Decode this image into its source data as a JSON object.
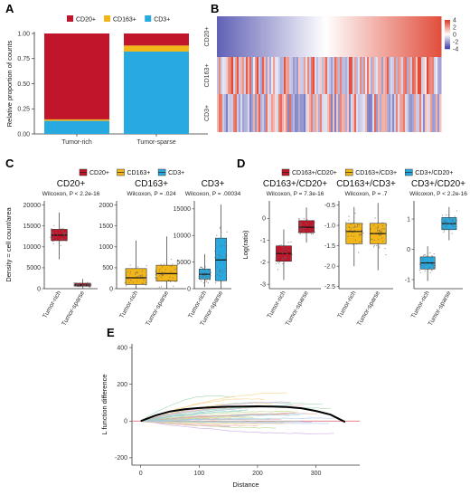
{
  "colors": {
    "red": "#c0152a",
    "yellow": "#f2b619",
    "blue": "#28a9e0",
    "trend": "#000000",
    "zero": "#e0707a"
  },
  "panels": {
    "A": "A",
    "B": "B",
    "C": "C",
    "D": "D",
    "E": "E"
  },
  "chart_data": [
    {
      "id": "A",
      "type": "bar",
      "stacked": true,
      "categories": [
        "Tumor-rich",
        "Tumor-sparse"
      ],
      "series": [
        {
          "name": "CD3+",
          "values": [
            0.13,
            0.82
          ],
          "color": "#28a9e0"
        },
        {
          "name": "CD163+",
          "values": [
            0.015,
            0.06
          ],
          "color": "#f2b619"
        },
        {
          "name": "CD20+",
          "values": [
            0.855,
            0.12
          ],
          "color": "#c0152a"
        }
      ],
      "legend_order": [
        "CD20+",
        "CD163+",
        "CD3+"
      ],
      "ylabel": "Relative proportion of counts",
      "ylim": [
        0,
        1
      ],
      "yticks": [
        "0.00",
        "0.25",
        "0.50",
        "0.75",
        "1.00"
      ],
      "legend": "top"
    },
    {
      "id": "B",
      "type": "heatmap",
      "rows": [
        "CD20+",
        "CD163+",
        "CD3+"
      ],
      "colorbar": {
        "ticks": [
          "4",
          "2",
          "0",
          "-2",
          "-4"
        ],
        "range": [
          -4,
          4
        ]
      }
    },
    {
      "id": "C",
      "type": "box",
      "legend": [
        "CD20+",
        "CD163+",
        "CD3+"
      ],
      "ylabel": "Density = cell count/area",
      "categories": [
        "Tumor-rich",
        "Tumor-sparse"
      ],
      "facets": [
        {
          "title": "CD20+",
          "test": "Wilcoxon, P < 2.2e-16",
          "ylim": [
            0,
            21000
          ],
          "yticks": [
            0,
            5000,
            10000,
            15000,
            20000
          ],
          "ytick_labels": [
            "0",
            "5000",
            "10000",
            "15000",
            "20000"
          ],
          "boxes": [
            {
              "q1": 11500,
              "median": 12800,
              "q3": 14200,
              "wlo": 7000,
              "whi": 18200,
              "color": "#c0152a"
            },
            {
              "q1": 600,
              "median": 900,
              "q3": 1300,
              "wlo": 100,
              "whi": 2300,
              "color": "#c0152a"
            }
          ]
        },
        {
          "title": "CD163+",
          "test": "Wilcoxon, P = .024",
          "ylim": [
            0,
            2100
          ],
          "yticks": [
            0,
            500,
            1000,
            1500,
            2000
          ],
          "ytick_labels": [
            "0",
            "500",
            "1000",
            "1500",
            "2000"
          ],
          "boxes": [
            {
              "q1": 100,
              "median": 260,
              "q3": 480,
              "wlo": 0,
              "whi": 1150,
              "color": "#f2b619"
            },
            {
              "q1": 180,
              "median": 360,
              "q3": 560,
              "wlo": 0,
              "whi": 1250,
              "color": "#f2b619"
            }
          ]
        },
        {
          "title": "CD3+",
          "test": "Wilcoxon, P = .00034",
          "ylim": [
            0,
            16500
          ],
          "yticks": [
            0,
            5000,
            10000,
            15000
          ],
          "ytick_labels": [
            "0",
            "5000",
            "10000",
            "15000"
          ],
          "boxes": [
            {
              "q1": 1800,
              "median": 2700,
              "q3": 3700,
              "wlo": 300,
              "whi": 6500,
              "color": "#28a9e0"
            },
            {
              "q1": 1500,
              "median": 5400,
              "q3": 9500,
              "wlo": 0,
              "whi": 15800,
              "color": "#28a9e0"
            }
          ]
        }
      ]
    },
    {
      "id": "D",
      "type": "box",
      "legend": [
        "CD163+/CD20+",
        "CD163+/CD3+",
        "CD3+/CD20+"
      ],
      "ylabel": "Log(ratio)",
      "categories": [
        "Tumor-rich",
        "Tumor-sparse"
      ],
      "facets": [
        {
          "title": "CD163+/CD20+",
          "test": "Wilcoxon, P = 7.3e-16",
          "ylim": [
            -3.2,
            0.8
          ],
          "yticks": [
            0,
            -1,
            -2,
            -3
          ],
          "ytick_labels": [
            "0",
            "-1",
            "-2",
            "-3"
          ],
          "boxes": [
            {
              "q1": -1.95,
              "median": -1.6,
              "q3": -1.25,
              "wlo": -2.8,
              "whi": -0.5,
              "color": "#c0152a"
            },
            {
              "q1": -0.65,
              "median": -0.4,
              "q3": -0.1,
              "wlo": -1.1,
              "whi": 0.5,
              "color": "#c0152a"
            }
          ]
        },
        {
          "title": "CD163+/CD3+",
          "test": "Wilcoxon, P = .7",
          "ylim": [
            -2.55,
            -0.4
          ],
          "yticks": [
            -0.5,
            -1.0,
            -1.5,
            -2.0,
            -2.5
          ],
          "ytick_labels": [
            "-0.5",
            "-1.0",
            "-1.5",
            "-2.0",
            "-2.5"
          ],
          "boxes": [
            {
              "q1": -1.45,
              "median": -1.15,
              "q3": -0.95,
              "wlo": -2.0,
              "whi": -0.55,
              "color": "#f2b619"
            },
            {
              "q1": -1.45,
              "median": -1.2,
              "q3": -0.95,
              "wlo": -2.1,
              "whi": -0.45,
              "color": "#f2b619"
            }
          ]
        },
        {
          "title": "CD3+/CD20+",
          "test": "Wilcoxon, P < 2.2e-16",
          "ylim": [
            -1.3,
            1.6
          ],
          "yticks": [
            1,
            0,
            -1
          ],
          "ytick_labels": [
            "1",
            "0",
            "-1"
          ],
          "boxes": [
            {
              "q1": -0.65,
              "median": -0.45,
              "q3": -0.25,
              "wlo": -1.05,
              "whi": 0.1,
              "color": "#28a9e0"
            },
            {
              "q1": 0.65,
              "median": 0.85,
              "q3": 1.05,
              "wlo": 0.3,
              "whi": 1.4,
              "color": "#28a9e0"
            }
          ]
        }
      ]
    },
    {
      "id": "E",
      "type": "line",
      "xlabel": "Distance",
      "ylabel": "L function difference",
      "xlim": [
        -15,
        375
      ],
      "ylim": [
        -240,
        420
      ],
      "xticks": [
        0,
        100,
        200,
        300
      ],
      "yticks": [
        -200,
        0,
        200,
        400
      ],
      "trend": {
        "x": [
          0,
          25,
          50,
          75,
          100,
          125,
          150,
          175,
          200,
          225,
          250,
          275,
          300,
          325,
          350
        ],
        "y": [
          0,
          30,
          52,
          64,
          71,
          75,
          78,
          79,
          80,
          79,
          76,
          70,
          55,
          35,
          -5
        ]
      }
    }
  ]
}
